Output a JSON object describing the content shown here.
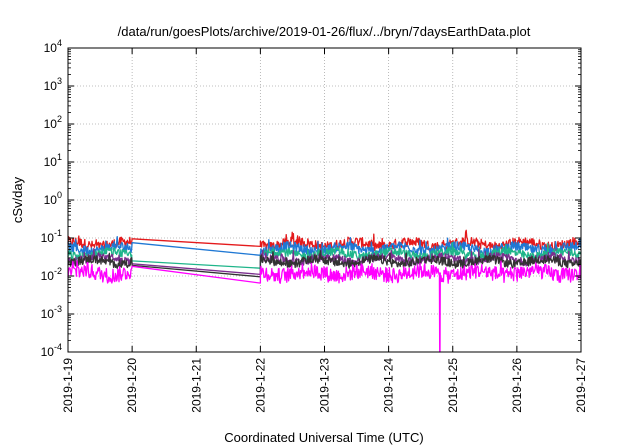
{
  "chart_data": {
    "type": "line",
    "title": "/data/run/goesPlots/archive/2019-01-26/flux/../bryn/7daysEarthData.plot",
    "xlabel": "Coordinated Universal Time (UTC)",
    "ylabel": "cSv/day",
    "x_categories": [
      "2019-1-19",
      "2019-1-20",
      "2019-1-21",
      "2019-1-22",
      "2019-1-23",
      "2019-1-24",
      "2019-1-25",
      "2019-1-26",
      "2019-1-27"
    ],
    "xlim": [
      "2019-1-19",
      "2019-1-27"
    ],
    "yscale": "log",
    "ylim": [
      0.0001,
      10000
    ],
    "y_ticks": [
      {
        "base": "10",
        "exp": "-4"
      },
      {
        "base": "10",
        "exp": "-3"
      },
      {
        "base": "10",
        "exp": "-2"
      },
      {
        "base": "10",
        "exp": "-1"
      },
      {
        "base": "10",
        "exp": "0"
      },
      {
        "base": "10",
        "exp": "1"
      },
      {
        "base": "10",
        "exp": "2"
      },
      {
        "base": "10",
        "exp": "3"
      },
      {
        "base": "10",
        "exp": "4"
      }
    ],
    "grid": true,
    "legend": "none",
    "data_gap": {
      "start": "2019-1-20",
      "end": "2019-1-22"
    },
    "notable_dip": {
      "x": "2019-1-24 19:00",
      "y": 0.0001
    },
    "series": [
      {
        "color": "#e41a1c",
        "level": 0.07,
        "variation": 1.35,
        "gap_start": 0.095,
        "gap_end": 0.06
      },
      {
        "color": "#1f78d4",
        "level": 0.052,
        "variation": 1.35,
        "gap_start": 0.075,
        "gap_end": 0.035
      },
      {
        "color": "#1fb58a",
        "level": 0.038,
        "variation": 1.3,
        "gap_start": 0.025,
        "gap_end": 0.016
      },
      {
        "color": "#7b2f8e",
        "level": 0.028,
        "variation": 1.3,
        "gap_start": 0.021,
        "gap_end": 0.011
      },
      {
        "color": "#333333",
        "level": 0.024,
        "variation": 1.3,
        "gap_start": 0.019,
        "gap_end": 0.0095
      },
      {
        "color": "#ff00ff",
        "level": 0.012,
        "variation": 1.6,
        "gap_start": 0.018,
        "gap_end": 0.0065
      }
    ]
  }
}
